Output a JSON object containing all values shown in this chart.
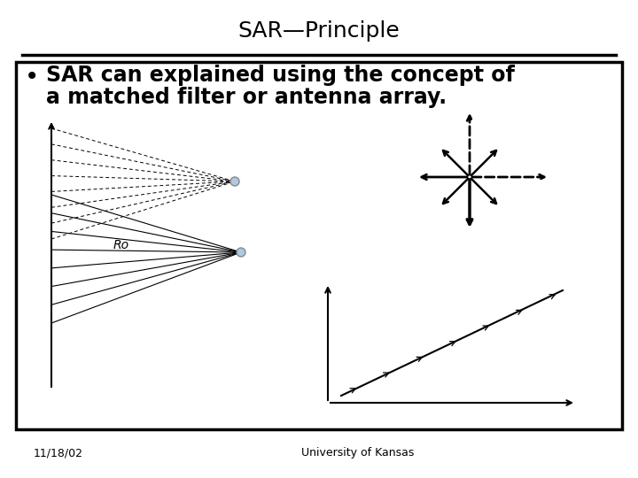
{
  "title": "SAR—Principle",
  "bullet_line1": "SAR can explained using the concept of",
  "bullet_line2": "a matched filter or antenna array.",
  "date_text": "11/18/02",
  "university_text": "University of Kansas",
  "bg_color": "#ffffff",
  "title_fontsize": 18,
  "bullet_fontsize": 17,
  "footer_fontsize": 9,
  "ro_fontsize": 10
}
